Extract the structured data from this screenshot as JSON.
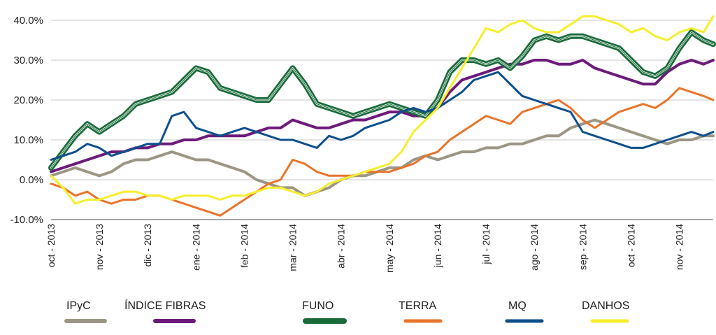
{
  "chart_data": {
    "type": "line",
    "y_tick_labels": [
      "40.0%",
      "30.0%",
      "20.0%",
      "10.0%",
      "0.0%",
      "-10.0%"
    ],
    "y_tick_values": [
      40,
      30,
      20,
      10,
      0,
      -10
    ],
    "ylim": [
      -10,
      40
    ],
    "x_tick_labels": [
      "oct - 2013",
      "nov - 2013",
      "dic - 2013",
      "ene - 2014",
      "feb - 2014",
      "mar - 2014",
      "abr - 2014",
      "may - 2014",
      "jun - 2014",
      "jul - 2014",
      "ago - 2014",
      "sep - 2014",
      "oct - 2014",
      "nov - 2014"
    ],
    "xlim": [
      0,
      13.7
    ],
    "grid": true,
    "legend_position": "bottom",
    "series": [
      {
        "name": "IPyC",
        "color": "#9b9685",
        "width": 4,
        "x": [
          0,
          0.25,
          0.5,
          0.75,
          1,
          1.25,
          1.5,
          1.75,
          2,
          2.25,
          2.5,
          2.75,
          3,
          3.25,
          3.5,
          3.75,
          4,
          4.25,
          4.5,
          4.75,
          5,
          5.25,
          5.5,
          5.75,
          6,
          6.25,
          6.5,
          6.75,
          7,
          7.25,
          7.5,
          7.75,
          8,
          8.25,
          8.5,
          8.75,
          9,
          9.25,
          9.5,
          9.75,
          10,
          10.25,
          10.5,
          10.75,
          11,
          11.25,
          11.5,
          11.75,
          12,
          12.25,
          12.5,
          12.75,
          13,
          13.25,
          13.5,
          13.7
        ],
        "y": [
          1,
          2,
          3,
          2,
          1,
          2,
          4,
          5,
          5,
          6,
          7,
          6,
          5,
          5,
          4,
          3,
          2,
          0,
          -1,
          -2,
          -2,
          -4,
          -3,
          -2,
          0,
          1,
          1,
          2,
          3,
          3,
          5,
          6,
          5,
          6,
          7,
          7,
          8,
          8,
          9,
          9,
          10,
          11,
          11,
          13,
          14,
          15,
          14,
          13,
          12,
          11,
          10,
          9,
          10,
          10,
          11,
          11
        ]
      },
      {
        "name": "ÍNDICE FIBRAS",
        "color": "#6d1b7b",
        "width": 4,
        "x": [
          0,
          0.25,
          0.5,
          0.75,
          1,
          1.25,
          1.5,
          1.75,
          2,
          2.25,
          2.5,
          2.75,
          3,
          3.25,
          3.5,
          3.75,
          4,
          4.25,
          4.5,
          4.75,
          5,
          5.25,
          5.5,
          5.75,
          6,
          6.25,
          6.5,
          6.75,
          7,
          7.25,
          7.5,
          7.75,
          8,
          8.25,
          8.5,
          8.75,
          9,
          9.25,
          9.5,
          9.75,
          10,
          10.25,
          10.5,
          10.75,
          11,
          11.25,
          11.5,
          11.75,
          12,
          12.25,
          12.5,
          12.75,
          13,
          13.25,
          13.5,
          13.7
        ],
        "y": [
          2,
          3,
          4,
          5,
          6,
          7,
          7,
          8,
          8,
          9,
          9,
          10,
          10,
          11,
          11,
          11,
          11,
          12,
          13,
          13,
          15,
          14,
          13,
          13,
          14,
          15,
          15,
          16,
          17,
          17,
          16,
          16,
          18,
          22,
          25,
          26,
          27,
          28,
          29,
          29,
          30,
          30,
          29,
          29,
          30,
          28,
          27,
          26,
          25,
          24,
          24,
          27,
          29,
          30,
          29,
          30
        ]
      },
      {
        "name": "FUNO",
        "color": "#1a6b3a",
        "width": 6,
        "x": [
          0,
          0.25,
          0.5,
          0.75,
          1,
          1.25,
          1.5,
          1.75,
          2,
          2.25,
          2.5,
          2.75,
          3,
          3.25,
          3.5,
          3.75,
          4,
          4.25,
          4.5,
          4.75,
          5,
          5.25,
          5.5,
          5.75,
          6,
          6.25,
          6.5,
          6.75,
          7,
          7.25,
          7.5,
          7.75,
          8,
          8.25,
          8.5,
          8.75,
          9,
          9.25,
          9.5,
          9.75,
          10,
          10.25,
          10.5,
          10.75,
          11,
          11.25,
          11.5,
          11.75,
          12,
          12.25,
          12.5,
          12.75,
          13,
          13.25,
          13.5,
          13.7
        ],
        "y": [
          3,
          7,
          11,
          14,
          12,
          14,
          16,
          19,
          20,
          21,
          22,
          25,
          28,
          27,
          23,
          22,
          21,
          20,
          20,
          24,
          28,
          24,
          19,
          18,
          17,
          16,
          17,
          18,
          19,
          18,
          17,
          16,
          20,
          27,
          30,
          30,
          29,
          30,
          28,
          31,
          35,
          36,
          35,
          36,
          36,
          35,
          34,
          33,
          30,
          27,
          26,
          28,
          33,
          37,
          35,
          34
        ]
      },
      {
        "name": "TERRA",
        "color": "#e8742a",
        "width": 3,
        "x": [
          0,
          0.25,
          0.5,
          0.75,
          1,
          1.25,
          1.5,
          1.75,
          2,
          2.25,
          2.5,
          2.75,
          3,
          3.25,
          3.5,
          3.75,
          4,
          4.25,
          4.5,
          4.75,
          5,
          5.25,
          5.5,
          5.75,
          6,
          6.25,
          6.5,
          6.75,
          7,
          7.25,
          7.5,
          7.75,
          8,
          8.25,
          8.5,
          8.75,
          9,
          9.25,
          9.5,
          9.75,
          10,
          10.25,
          10.5,
          10.75,
          11,
          11.25,
          11.5,
          11.75,
          12,
          12.25,
          12.5,
          12.75,
          13,
          13.25,
          13.5,
          13.7
        ],
        "y": [
          -1,
          -2,
          -4,
          -3,
          -5,
          -6,
          -5,
          -5,
          -4,
          -4,
          -5,
          -6,
          -7,
          -8,
          -9,
          -7,
          -5,
          -3,
          -1,
          0,
          5,
          4,
          2,
          1,
          1,
          1,
          2,
          2,
          2,
          3,
          4,
          6,
          7,
          10,
          12,
          14,
          16,
          15,
          14,
          17,
          18,
          19,
          20,
          18,
          15,
          13,
          15,
          17,
          18,
          19,
          18,
          20,
          23,
          22,
          21,
          20
        ]
      },
      {
        "name": "MQ",
        "color": "#0d4f8b",
        "width": 3,
        "x": [
          0,
          0.25,
          0.5,
          0.75,
          1,
          1.25,
          1.5,
          1.75,
          2,
          2.25,
          2.5,
          2.75,
          3,
          3.25,
          3.5,
          3.75,
          4,
          4.25,
          4.5,
          4.75,
          5,
          5.25,
          5.5,
          5.75,
          6,
          6.25,
          6.5,
          6.75,
          7,
          7.25,
          7.5,
          7.75,
          8,
          8.25,
          8.5,
          8.75,
          9,
          9.25,
          9.5,
          9.75,
          10,
          10.25,
          10.5,
          10.75,
          11,
          11.25,
          11.5,
          11.75,
          12,
          12.25,
          12.5,
          12.75,
          13,
          13.25,
          13.5,
          13.7
        ],
        "y": [
          5,
          6,
          7,
          9,
          8,
          6,
          7,
          8,
          9,
          9,
          16,
          17,
          13,
          12,
          11,
          12,
          13,
          12,
          11,
          10,
          10,
          9,
          8,
          11,
          10,
          11,
          13,
          14,
          15,
          17,
          18,
          17,
          18,
          20,
          22,
          25,
          26,
          27,
          24,
          21,
          20,
          19,
          18,
          17,
          12,
          11,
          10,
          9,
          8,
          8,
          9,
          10,
          11,
          12,
          11,
          12
        ]
      },
      {
        "name": "DANHOS",
        "color": "#f7ee2c",
        "width": 3,
        "x": [
          0,
          0.25,
          0.5,
          0.75,
          1,
          1.25,
          1.5,
          1.75,
          2,
          2.25,
          2.5,
          2.75,
          3,
          3.25,
          3.5,
          3.75,
          4,
          4.25,
          4.5,
          4.75,
          5,
          5.25,
          5.5,
          5.75,
          6,
          6.25,
          6.5,
          6.75,
          7,
          7.25,
          7.5,
          7.75,
          8,
          8.25,
          8.5,
          8.75,
          9,
          9.25,
          9.5,
          9.75,
          10,
          10.25,
          10.5,
          10.75,
          11,
          11.25,
          11.5,
          11.75,
          12,
          12.25,
          12.5,
          12.75,
          13,
          13.25,
          13.5,
          13.7
        ],
        "y": [
          1,
          -2,
          -6,
          -5,
          -5,
          -4,
          -3,
          -3,
          -4,
          -4,
          -5,
          -4,
          -4,
          -4,
          -5,
          -4,
          -4,
          -3,
          -2,
          -2,
          -3,
          -4,
          -3,
          -1,
          0,
          1,
          2,
          3,
          4,
          7,
          12,
          15,
          18,
          23,
          28,
          33,
          38,
          37,
          39,
          40,
          38,
          37,
          37,
          39,
          41,
          41,
          40,
          39,
          37,
          38,
          36,
          35,
          37,
          38,
          37,
          41
        ]
      }
    ]
  }
}
